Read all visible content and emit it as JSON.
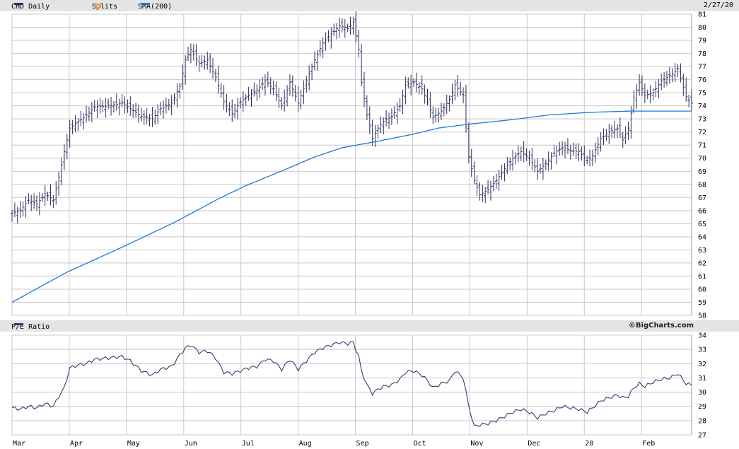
{
  "header": {
    "symbol_label": "CHD Daily",
    "splits_label": "Splits",
    "splits_badge": "S",
    "sma_label": "SMA(200)",
    "date": "2/27/20"
  },
  "pe_header": {
    "label": "P/E Ratio",
    "brand": "©BigCharts.com"
  },
  "colors": {
    "price": "#2e2e5e",
    "sma": "#1f78d8",
    "pe": "#3a3a6e",
    "grid": "#c8c8c8"
  },
  "chart_data": [
    {
      "type": "ohlc",
      "title": "CHD Daily",
      "legend": [
        "CHD Daily",
        "Splits",
        "SMA(200)"
      ],
      "x_ticks": [
        "Mar",
        "Apr",
        "May",
        "Jun",
        "Jul",
        "Aug",
        "Sep",
        "Oct",
        "Nov",
        "Dec",
        "20",
        "Feb"
      ],
      "ylim": [
        58,
        81
      ],
      "y_ticks": [
        58,
        59,
        60,
        61,
        62,
        63,
        64,
        65,
        66,
        67,
        68,
        69,
        70,
        71,
        72,
        73,
        74,
        75,
        76,
        77,
        78,
        79,
        80,
        81
      ],
      "series": [
        {
          "name": "CHD Daily",
          "close_anchors": [
            [
              0,
              65.8
            ],
            [
              3,
              66.0
            ],
            [
              6,
              66.8
            ],
            [
              9,
              66.5
            ],
            [
              12,
              67.3
            ],
            [
              15,
              66.8
            ],
            [
              17,
              68.5
            ],
            [
              19,
              70.5
            ],
            [
              21,
              72.3
            ],
            [
              24,
              72.8
            ],
            [
              27,
              73.3
            ],
            [
              30,
              73.9
            ],
            [
              35,
              74.0
            ],
            [
              40,
              74.2
            ],
            [
              43,
              73.8
            ],
            [
              47,
              73.2
            ],
            [
              51,
              73.0
            ],
            [
              54,
              73.8
            ],
            [
              58,
              74.2
            ],
            [
              61,
              75.5
            ],
            [
              63,
              77.5
            ],
            [
              65,
              78.3
            ],
            [
              68,
              77.2
            ],
            [
              71,
              77.5
            ],
            [
              74,
              76.2
            ],
            [
              77,
              74.3
            ],
            [
              80,
              73.4
            ],
            [
              83,
              74.3
            ],
            [
              86,
              74.8
            ],
            [
              89,
              75.2
            ],
            [
              92,
              75.9
            ],
            [
              95,
              75.3
            ],
            [
              98,
              74.0
            ],
            [
              101,
              75.8
            ],
            [
              104,
              74.2
            ],
            [
              107,
              75.9
            ],
            [
              110,
              77.5
            ],
            [
              113,
              78.8
            ],
            [
              116,
              79.5
            ],
            [
              119,
              80.1
            ],
            [
              122,
              79.9
            ],
            [
              124,
              80.4
            ],
            [
              126,
              78.3
            ],
            [
              127,
              75.8
            ],
            [
              129,
              73.3
            ],
            [
              131,
              71.5
            ],
            [
              133,
              72.3
            ],
            [
              135,
              72.8
            ],
            [
              138,
              73.2
            ],
            [
              141,
              74.0
            ],
            [
              143,
              75.6
            ],
            [
              146,
              75.8
            ],
            [
              149,
              75.3
            ],
            [
              151,
              74.3
            ],
            [
              153,
              73.1
            ],
            [
              156,
              73.6
            ],
            [
              159,
              74.5
            ],
            [
              161,
              75.6
            ],
            [
              164,
              74.8
            ],
            [
              166,
              70.1
            ],
            [
              168,
              68.3
            ],
            [
              170,
              67.2
            ],
            [
              173,
              67.6
            ],
            [
              176,
              68.3
            ],
            [
              179,
              69.2
            ],
            [
              182,
              70.0
            ],
            [
              185,
              70.5
            ],
            [
              188,
              70.0
            ],
            [
              191,
              69.0
            ],
            [
              194,
              69.6
            ],
            [
              197,
              70.4
            ],
            [
              200,
              70.8
            ],
            [
              203,
              70.6
            ],
            [
              206,
              70.5
            ],
            [
              209,
              69.8
            ],
            [
              211,
              70.2
            ],
            [
              214,
              71.5
            ],
            [
              217,
              72.0
            ],
            [
              220,
              72.3
            ],
            [
              222,
              71.4
            ],
            [
              224,
              72.3
            ],
            [
              226,
              74.6
            ],
            [
              228,
              75.8
            ],
            [
              230,
              74.8
            ],
            [
              233,
              75.0
            ],
            [
              236,
              75.9
            ],
            [
              239,
              76.3
            ],
            [
              242,
              76.8
            ],
            [
              245,
              74.7
            ],
            [
              247,
              74.2
            ]
          ]
        },
        {
          "name": "SMA(200)",
          "anchors": [
            [
              0,
              59.0
            ],
            [
              20,
              61.3
            ],
            [
              40,
              63.2
            ],
            [
              60,
              65.2
            ],
            [
              75,
              66.9
            ],
            [
              85,
              67.9
            ],
            [
              100,
              69.2
            ],
            [
              110,
              70.1
            ],
            [
              120,
              70.8
            ],
            [
              133,
              71.3
            ],
            [
              145,
              71.8
            ],
            [
              155,
              72.3
            ],
            [
              166,
              72.6
            ],
            [
              180,
              72.9
            ],
            [
              195,
              73.3
            ],
            [
              210,
              73.5
            ],
            [
              225,
              73.6
            ],
            [
              247,
              73.6
            ]
          ]
        }
      ]
    },
    {
      "type": "line",
      "title": "P/E Ratio",
      "x_ticks": [
        "Mar",
        "Apr",
        "May",
        "Jun",
        "Jul",
        "Aug",
        "Sep",
        "Oct",
        "Nov",
        "Dec",
        "20",
        "Feb"
      ],
      "ylim": [
        27,
        34
      ],
      "y_ticks": [
        27,
        28,
        29,
        30,
        31,
        32,
        33,
        34
      ],
      "series": [
        {
          "name": "P/E Ratio",
          "anchors": [
            [
              0,
              28.9
            ],
            [
              3,
              28.8
            ],
            [
              6,
              29.0
            ],
            [
              9,
              28.9
            ],
            [
              12,
              29.2
            ],
            [
              15,
              29.0
            ],
            [
              17,
              29.7
            ],
            [
              19,
              30.3
            ],
            [
              21,
              31.7
            ],
            [
              24,
              31.9
            ],
            [
              27,
              32.0
            ],
            [
              30,
              32.3
            ],
            [
              35,
              32.4
            ],
            [
              40,
              32.5
            ],
            [
              43,
              32.2
            ],
            [
              47,
              31.5
            ],
            [
              51,
              31.2
            ],
            [
              54,
              31.6
            ],
            [
              58,
              31.8
            ],
            [
              61,
              32.6
            ],
            [
              63,
              33.1
            ],
            [
              65,
              33.3
            ],
            [
              68,
              32.8
            ],
            [
              71,
              32.9
            ],
            [
              74,
              32.4
            ],
            [
              77,
              31.4
            ],
            [
              80,
              31.3
            ],
            [
              83,
              31.5
            ],
            [
              86,
              31.7
            ],
            [
              89,
              31.8
            ],
            [
              92,
              32.3
            ],
            [
              95,
              32.2
            ],
            [
              98,
              31.6
            ],
            [
              101,
              32.3
            ],
            [
              104,
              31.6
            ],
            [
              107,
              32.2
            ],
            [
              110,
              32.8
            ],
            [
              113,
              33.1
            ],
            [
              116,
              33.3
            ],
            [
              119,
              33.5
            ],
            [
              122,
              33.4
            ],
            [
              124,
              33.5
            ],
            [
              126,
              32.5
            ],
            [
              127,
              31.5
            ],
            [
              129,
              30.5
            ],
            [
              131,
              29.9
            ],
            [
              133,
              30.2
            ],
            [
              135,
              30.4
            ],
            [
              138,
              30.5
            ],
            [
              141,
              30.9
            ],
            [
              143,
              31.4
            ],
            [
              146,
              31.5
            ],
            [
              149,
              31.2
            ],
            [
              151,
              30.8
            ],
            [
              153,
              30.3
            ],
            [
              156,
              30.6
            ],
            [
              159,
              30.8
            ],
            [
              161,
              31.5
            ],
            [
              164,
              31.0
            ],
            [
              166,
              29.0
            ],
            [
              168,
              27.6
            ],
            [
              170,
              27.7
            ],
            [
              173,
              27.8
            ],
            [
              176,
              28.0
            ],
            [
              179,
              28.3
            ],
            [
              182,
              28.6
            ],
            [
              185,
              28.8
            ],
            [
              188,
              28.6
            ],
            [
              191,
              28.2
            ],
            [
              194,
              28.5
            ],
            [
              197,
              28.7
            ],
            [
              200,
              29.0
            ],
            [
              203,
              28.9
            ],
            [
              206,
              28.8
            ],
            [
              209,
              28.6
            ],
            [
              211,
              28.9
            ],
            [
              214,
              29.4
            ],
            [
              217,
              29.6
            ],
            [
              220,
              29.8
            ],
            [
              222,
              29.6
            ],
            [
              224,
              29.7
            ],
            [
              226,
              30.3
            ],
            [
              228,
              30.6
            ],
            [
              230,
              30.4
            ],
            [
              233,
              30.7
            ],
            [
              236,
              30.9
            ],
            [
              239,
              31.0
            ],
            [
              242,
              31.3
            ],
            [
              245,
              30.6
            ],
            [
              247,
              30.5
            ]
          ]
        }
      ]
    }
  ]
}
